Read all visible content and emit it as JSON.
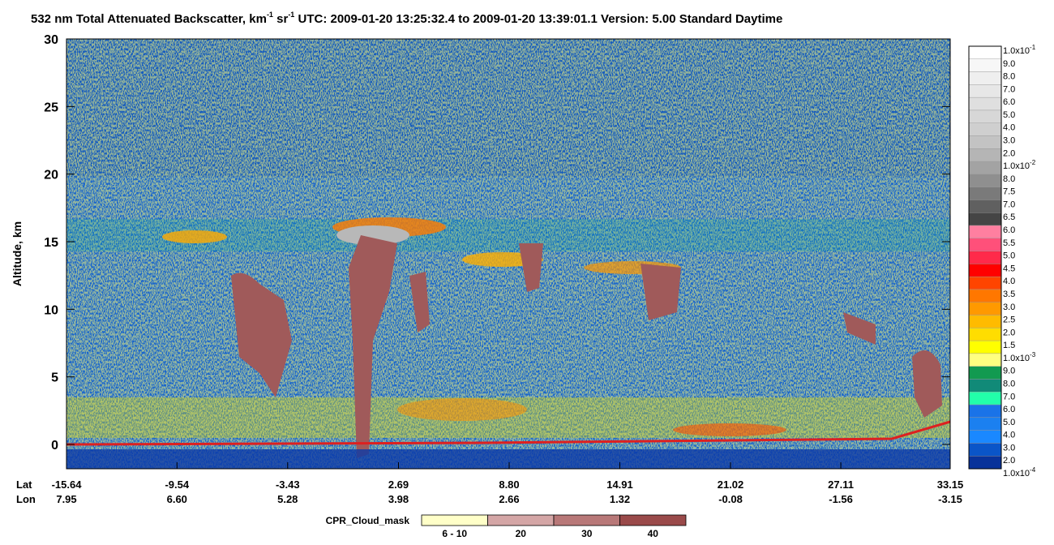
{
  "chart_data": {
    "type": "curtain",
    "title_parts": [
      {
        "text": "532 nm Total Attenuated Backscatter, km"
      },
      {
        "sup": "-1"
      },
      {
        "text": " sr"
      },
      {
        "sup": "-1"
      },
      {
        "text": "    UTC:  2009-01-20 13:25:32.4  to  2009-01-20 13:39:01.1    Version: 5.00  Standard  Daytime"
      }
    ],
    "ylabel": "Altitude, km",
    "ylim": [
      -1.8,
      30
    ],
    "yticks": [
      0,
      5,
      10,
      15,
      20,
      25,
      30
    ],
    "xlim": [
      -15.64,
      33.15
    ],
    "x_row_label": "Lat",
    "x2_row_label": "Lon",
    "xticks": [
      {
        "value": -15.64,
        "label": "-15.64"
      },
      {
        "value": -9.54,
        "label": "-9.54"
      },
      {
        "value": -3.43,
        "label": "-3.43"
      },
      {
        "value": 2.69,
        "label": "2.69"
      },
      {
        "value": 8.8,
        "label": "8.80"
      },
      {
        "value": 14.91,
        "label": "14.91"
      },
      {
        "value": 21.02,
        "label": "21.02"
      },
      {
        "value": 27.11,
        "label": "27.11"
      },
      {
        "value": 33.15,
        "label": "33.15"
      }
    ],
    "lon_labels": [
      "7.95",
      "6.60",
      "5.28",
      "3.98",
      "2.66",
      "1.32",
      "-0.08",
      "-1.56",
      "-3.15"
    ],
    "colorbar": {
      "labels": [
        {
          "text": "1.0x10",
          "sup": "-1"
        },
        {
          "text": "9.0"
        },
        {
          "text": "8.0"
        },
        {
          "text": "7.0"
        },
        {
          "text": "6.0"
        },
        {
          "text": "5.0"
        },
        {
          "text": "4.0"
        },
        {
          "text": "3.0"
        },
        {
          "text": "2.0"
        },
        {
          "text": "1.0x10",
          "sup": "-2"
        },
        {
          "text": "8.0"
        },
        {
          "text": "7.5"
        },
        {
          "text": "7.0"
        },
        {
          "text": "6.5"
        },
        {
          "text": "6.0"
        },
        {
          "text": "5.5"
        },
        {
          "text": "5.0"
        },
        {
          "text": "4.5"
        },
        {
          "text": "4.0"
        },
        {
          "text": "3.5"
        },
        {
          "text": "3.0"
        },
        {
          "text": "2.5"
        },
        {
          "text": "2.0"
        },
        {
          "text": "1.5"
        },
        {
          "text": "1.0x10",
          "sup": "-3"
        },
        {
          "text": "9.0"
        },
        {
          "text": "8.0"
        },
        {
          "text": "7.0"
        },
        {
          "text": "6.0"
        },
        {
          "text": "5.0"
        },
        {
          "text": "4.0"
        },
        {
          "text": "3.0"
        },
        {
          "text": "2.0"
        },
        {
          "text": "1.0x10",
          "sup": "-4"
        }
      ],
      "colors": [
        "#ffffff",
        "#f7f7f7",
        "#efefef",
        "#e7e7e7",
        "#dfdfdf",
        "#d7d7d7",
        "#cfcfcf",
        "#c3c3c3",
        "#b5b5b5",
        "#a3a3a3",
        "#8f8f8f",
        "#7a7a7a",
        "#606060",
        "#454545",
        "#ff7fa0",
        "#ff507a",
        "#ff2a4a",
        "#ff0000",
        "#ff4400",
        "#ff7700",
        "#ff9900",
        "#ffbb00",
        "#ffdd00",
        "#ffff00",
        "#ffff80",
        "#129a50",
        "#118a78",
        "#22ffaa",
        "#1a73e8",
        "#1b80f0",
        "#1a88ff",
        "#0a55c8",
        "#08329a"
      ]
    },
    "mask_legend": {
      "title": "CPR_Cloud_mask",
      "labels": [
        "6 - 10",
        "20",
        "30",
        "40"
      ],
      "colors": [
        "#ffffc8",
        "#d4a6a6",
        "#b87878",
        "#9a4a4a"
      ]
    }
  }
}
